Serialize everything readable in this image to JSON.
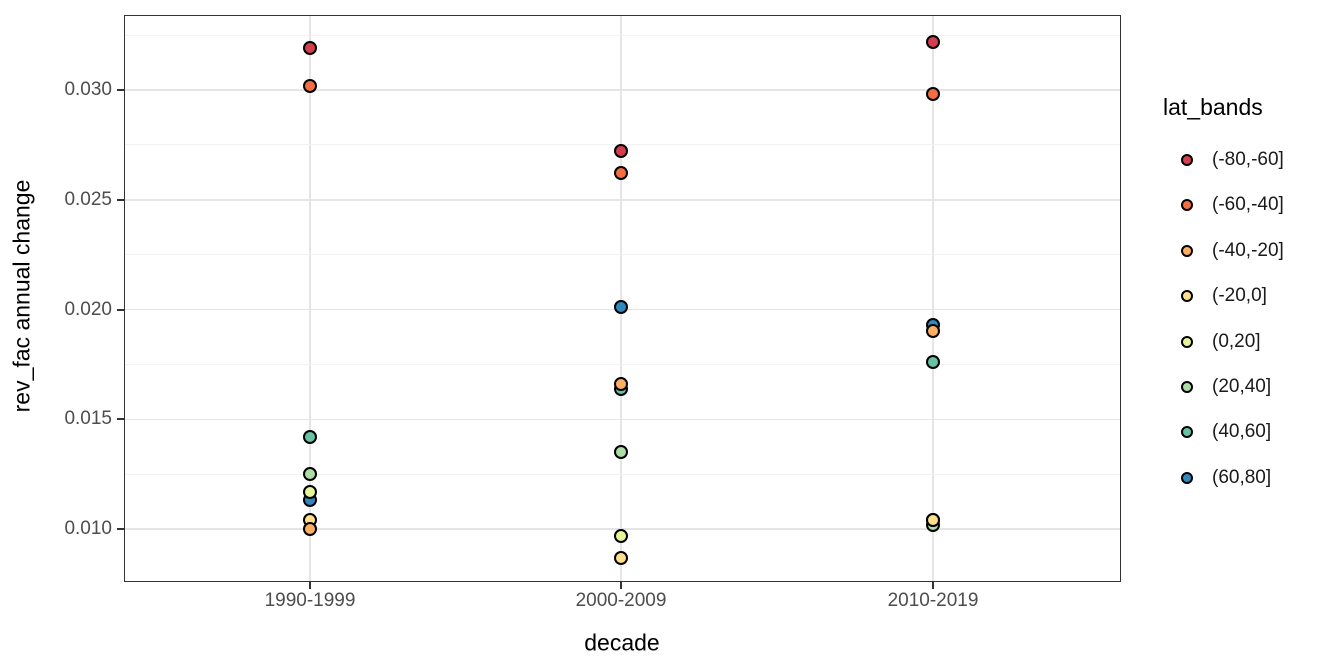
{
  "chart_data": {
    "type": "scatter",
    "xlabel": "decade",
    "ylabel": "rev_fac annual change",
    "legend_title": "lat_bands",
    "legend_position": "right",
    "grid": true,
    "categories": [
      "1990-1999",
      "2000-2009",
      "2010-2019"
    ],
    "y_ticks": [
      {
        "label": "0.010",
        "value": 0.01
      },
      {
        "label": "0.015",
        "value": 0.015
      },
      {
        "label": "0.020",
        "value": 0.02
      },
      {
        "label": "0.025",
        "value": 0.025
      },
      {
        "label": "0.030",
        "value": 0.03
      }
    ],
    "y_minor_ticks": [
      0.0125,
      0.0175,
      0.0225,
      0.0275,
      0.0325
    ],
    "ylim": [
      0.0076,
      0.0334
    ],
    "series": [
      {
        "name": "(-80,-60]",
        "color": "#d53e4f",
        "values": [
          0.0319,
          0.0272,
          0.0322
        ]
      },
      {
        "name": "(-60,-40]",
        "color": "#f46d43",
        "values": [
          0.0302,
          0.0262,
          0.0298
        ]
      },
      {
        "name": "(-40,-20]",
        "color": "#fdae61",
        "values": [
          0.01,
          0.0166,
          0.019
        ]
      },
      {
        "name": "(-20,0]",
        "color": "#fee08b",
        "values": [
          0.0104,
          0.0087,
          0.0104
        ]
      },
      {
        "name": "(0,20]",
        "color": "#e6f598",
        "values": [
          0.0117,
          0.0097,
          0.0104
        ]
      },
      {
        "name": "(20,40]",
        "color": "#abdda4",
        "values": [
          0.0125,
          0.0135,
          0.0102
        ]
      },
      {
        "name": "(40,60]",
        "color": "#66c2a5",
        "values": [
          0.0142,
          0.0164,
          0.0176
        ]
      },
      {
        "name": "(60,80]",
        "color": "#3288bd",
        "values": [
          0.0113,
          0.0201,
          0.0193
        ]
      }
    ]
  }
}
